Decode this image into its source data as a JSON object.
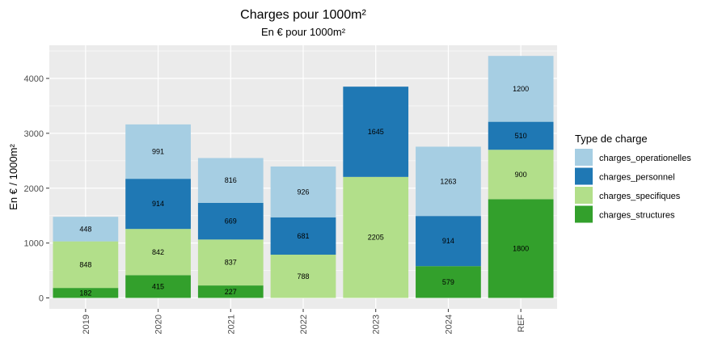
{
  "chart_data": {
    "type": "bar",
    "stacked": true,
    "title": "Charges pour 1000m²",
    "subtitle": "En € pour 1000m²",
    "xlabel": "",
    "ylabel": "En € / 1000m²",
    "ylim": [
      0,
      4500
    ],
    "yticks": [
      0,
      1000,
      2000,
      3000,
      4000
    ],
    "grid": true,
    "legend_position": "right",
    "legend_title": "Type de charge",
    "categories": [
      "2019",
      "2020",
      "2021",
      "2022",
      "2023",
      "2024",
      "REF"
    ],
    "series": [
      {
        "name": "charges_structures",
        "color": "#33a02c",
        "values": [
          182,
          415,
          227,
          null,
          null,
          579,
          1800
        ]
      },
      {
        "name": "charges_specifiques",
        "color": "#b2df8a",
        "values": [
          848,
          842,
          837,
          788,
          2205,
          null,
          900
        ]
      },
      {
        "name": "charges_personnel",
        "color": "#1f78b4",
        "values": [
          null,
          914,
          669,
          681,
          1645,
          914,
          510
        ]
      },
      {
        "name": "charges_operationelles",
        "color": "#a6cee3",
        "values": [
          448,
          991,
          816,
          926,
          null,
          1263,
          1200
        ]
      }
    ],
    "legend_order": [
      "charges_operationelles",
      "charges_personnel",
      "charges_specifiques",
      "charges_structures"
    ]
  }
}
